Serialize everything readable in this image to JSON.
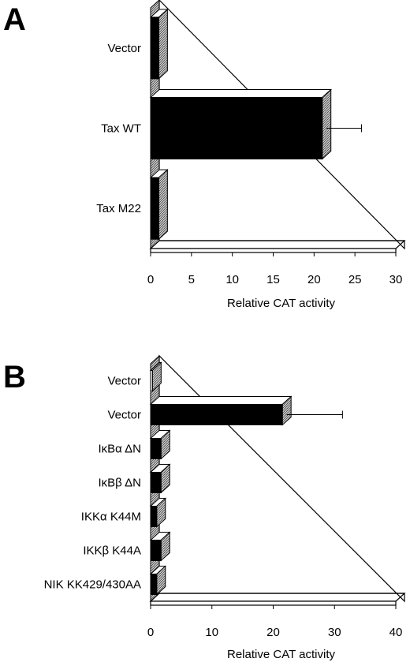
{
  "chart_data": [
    {
      "type": "bar",
      "orientation": "horizontal",
      "panel_label": "A",
      "categories": [
        "Vector",
        "Tax WT",
        "Tax M22"
      ],
      "values": [
        1.0,
        21.0,
        1.0
      ],
      "error_bars": [
        null,
        4.8,
        null
      ],
      "bar_colors": [
        "#000000",
        "#000000",
        "#000000"
      ],
      "xlim": [
        0,
        30
      ],
      "xticks": [
        "0",
        "5",
        "10",
        "15",
        "20",
        "25",
        "30"
      ],
      "xlabel": "Relative CAT activity",
      "grid": false,
      "style": "3d"
    },
    {
      "type": "bar",
      "orientation": "horizontal",
      "panel_label": "B",
      "categories": [
        "Vector",
        "Vector",
        "IκBα ΔN",
        "IκBβ ΔN",
        "IKKα K44M",
        "IKKβ K44A",
        "NIK KK429/430AA"
      ],
      "values": [
        0.3,
        21.5,
        1.7,
        1.7,
        1.0,
        1.7,
        1.0
      ],
      "error_bars": [
        null,
        9.8,
        null,
        null,
        null,
        null,
        null
      ],
      "bar_colors": [
        "#ffffff",
        "#000000",
        "#000000",
        "#000000",
        "#000000",
        "#000000",
        "#000000"
      ],
      "xlim": [
        0,
        40
      ],
      "xticks": [
        "0",
        "10",
        "20",
        "30",
        "40"
      ],
      "xlabel": "Relative CAT activity",
      "grid": false,
      "style": "3d"
    }
  ]
}
